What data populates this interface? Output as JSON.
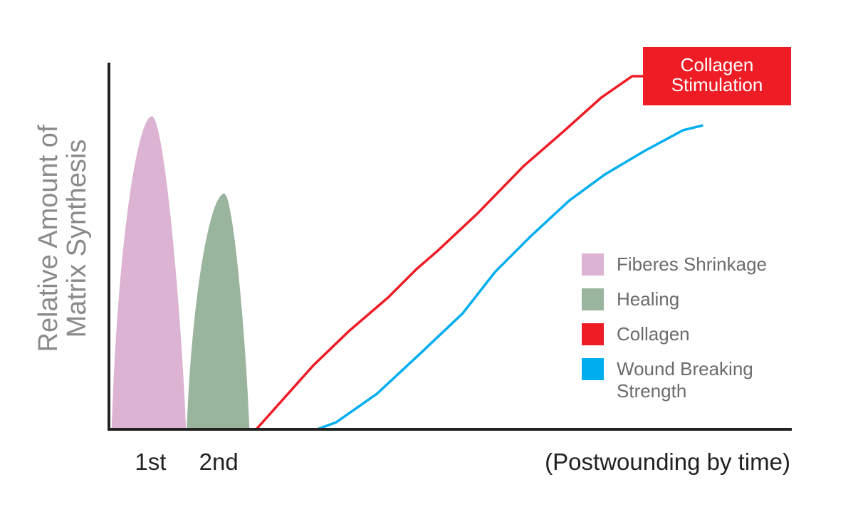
{
  "chart_data": {
    "type": "line",
    "ylabel": [
      "Relative Amount of",
      "Matrix Synthesis"
    ],
    "xlabel": "(Postwounding by time)",
    "annotation": [
      "Collagen",
      "Stimulation"
    ],
    "annotation_color": "#ee1c25",
    "xlim": [
      0,
      100
    ],
    "ylim": [
      0,
      100
    ],
    "xticks": [
      {
        "value": 6.2,
        "label": "1st"
      },
      {
        "value": 16.2,
        "label": "2nd"
      }
    ],
    "series": [
      {
        "name": "Fiberes Shrinkage",
        "color": "#dcb3d3",
        "style": "area",
        "x": [
          0.5,
          6.4,
          11.4
        ],
        "values": [
          0,
          85.4,
          0
        ]
      },
      {
        "name": "Healing",
        "color": "#9ab59e",
        "style": "area",
        "x": [
          11.5,
          17.0,
          20.7
        ],
        "values": [
          0,
          64.3,
          0
        ]
      },
      {
        "name": "Collagen",
        "color": "#ee1c25",
        "style": "line",
        "x": [
          21.7,
          30.1,
          35.3,
          41.0,
          45.2,
          48.3,
          54.1,
          60.9,
          66.6,
          72.3,
          76.8,
          78.6
        ],
        "values": [
          0,
          17.5,
          26.8,
          35.9,
          43.7,
          48.7,
          58.8,
          71.8,
          81.0,
          90.5,
          96.3,
          96.3
        ]
      },
      {
        "name": "Wound Breaking Strength",
        "color": "#00aeef",
        "style": "line",
        "x": [
          30.6,
          33.4,
          39.4,
          45.7,
          52.0,
          56.7,
          61.9,
          67.6,
          72.8,
          78.6,
          84.3,
          87.2
        ],
        "values": [
          0,
          1.9,
          9.7,
          20.6,
          31.7,
          42.9,
          52.6,
          62.4,
          69.5,
          75.9,
          81.6,
          82.9
        ]
      }
    ]
  }
}
